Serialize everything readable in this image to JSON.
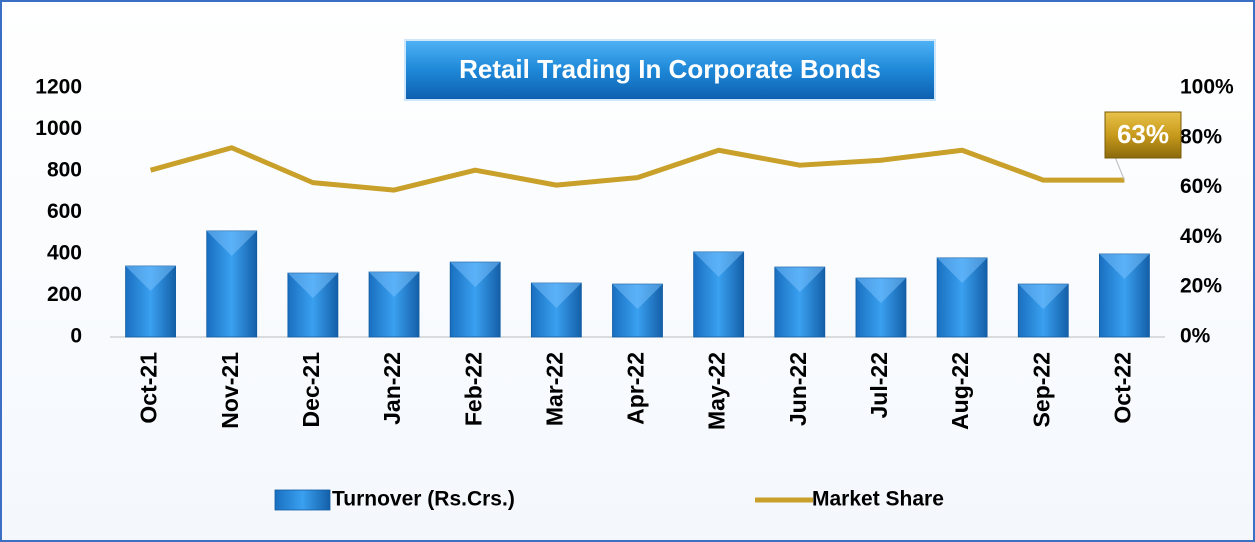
{
  "chart_data": {
    "type": "bar",
    "title": "Retail Trading In Corporate Bonds",
    "categories": [
      "Oct-21",
      "Nov-21",
      "Dec-21",
      "Jan-22",
      "Feb-22",
      "Mar-22",
      "Apr-22",
      "May-22",
      "Jun-22",
      "Jul-22",
      "Aug-22",
      "Sep-22",
      "Oct-22"
    ],
    "series": [
      {
        "name": "Turnover (Rs.Crs.)",
        "type": "bar",
        "color": "#1f86d8",
        "values": [
          342,
          511,
          308,
          313,
          361,
          260,
          255,
          410,
          337,
          284,
          381,
          255,
          400
        ]
      },
      {
        "name": "Market Share",
        "type": "line",
        "axis": "y2",
        "color": "#c8a02a",
        "values": [
          67,
          76,
          62,
          59,
          67,
          61,
          64,
          75,
          69,
          71,
          75,
          63,
          63
        ],
        "value_labels": [
          null,
          null,
          null,
          null,
          null,
          null,
          null,
          null,
          null,
          null,
          null,
          null,
          "63%"
        ]
      }
    ],
    "ylim": [
      0,
      1200
    ],
    "yticks": [
      0,
      200,
      400,
      600,
      800,
      1000,
      1200
    ],
    "y2lim": [
      0,
      100
    ],
    "y2ticks": [
      {
        "value": 0,
        "label": "0%"
      },
      {
        "value": 20,
        "label": "20%"
      },
      {
        "value": 40,
        "label": "40%"
      },
      {
        "value": 60,
        "label": "60%"
      },
      {
        "value": 80,
        "label": "80%"
      },
      {
        "value": 100,
        "label": "100%"
      }
    ],
    "grid": false,
    "legend": "bottom"
  }
}
